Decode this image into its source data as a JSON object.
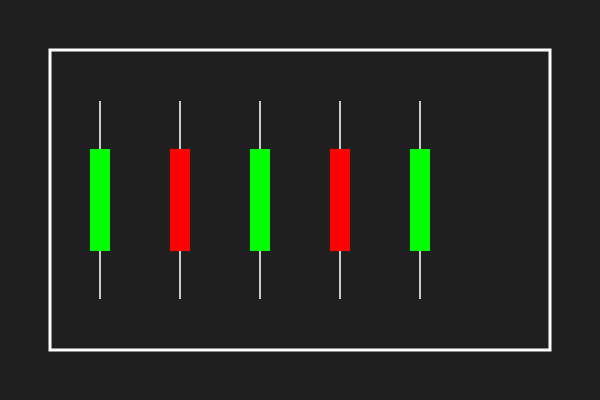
{
  "colors": {
    "background": "#1f1f1f",
    "frame": "#ffffff",
    "wick": "#cccccc",
    "up": "#00ff00",
    "down": "#ff0000"
  },
  "chart_data": {
    "type": "candlestick",
    "title": "",
    "xlabel": "",
    "ylabel": "",
    "ylim": [
      0,
      100
    ],
    "grid": false,
    "legend": "none",
    "candles": [
      {
        "open": 33,
        "close": 67,
        "high": 83,
        "low": 17,
        "direction": "up"
      },
      {
        "open": 67,
        "close": 33,
        "high": 83,
        "low": 17,
        "direction": "down"
      },
      {
        "open": 33,
        "close": 67,
        "high": 83,
        "low": 17,
        "direction": "up"
      },
      {
        "open": 67,
        "close": 33,
        "high": 83,
        "low": 17,
        "direction": "down"
      },
      {
        "open": 33,
        "close": 67,
        "high": 83,
        "low": 17,
        "direction": "up"
      }
    ]
  }
}
